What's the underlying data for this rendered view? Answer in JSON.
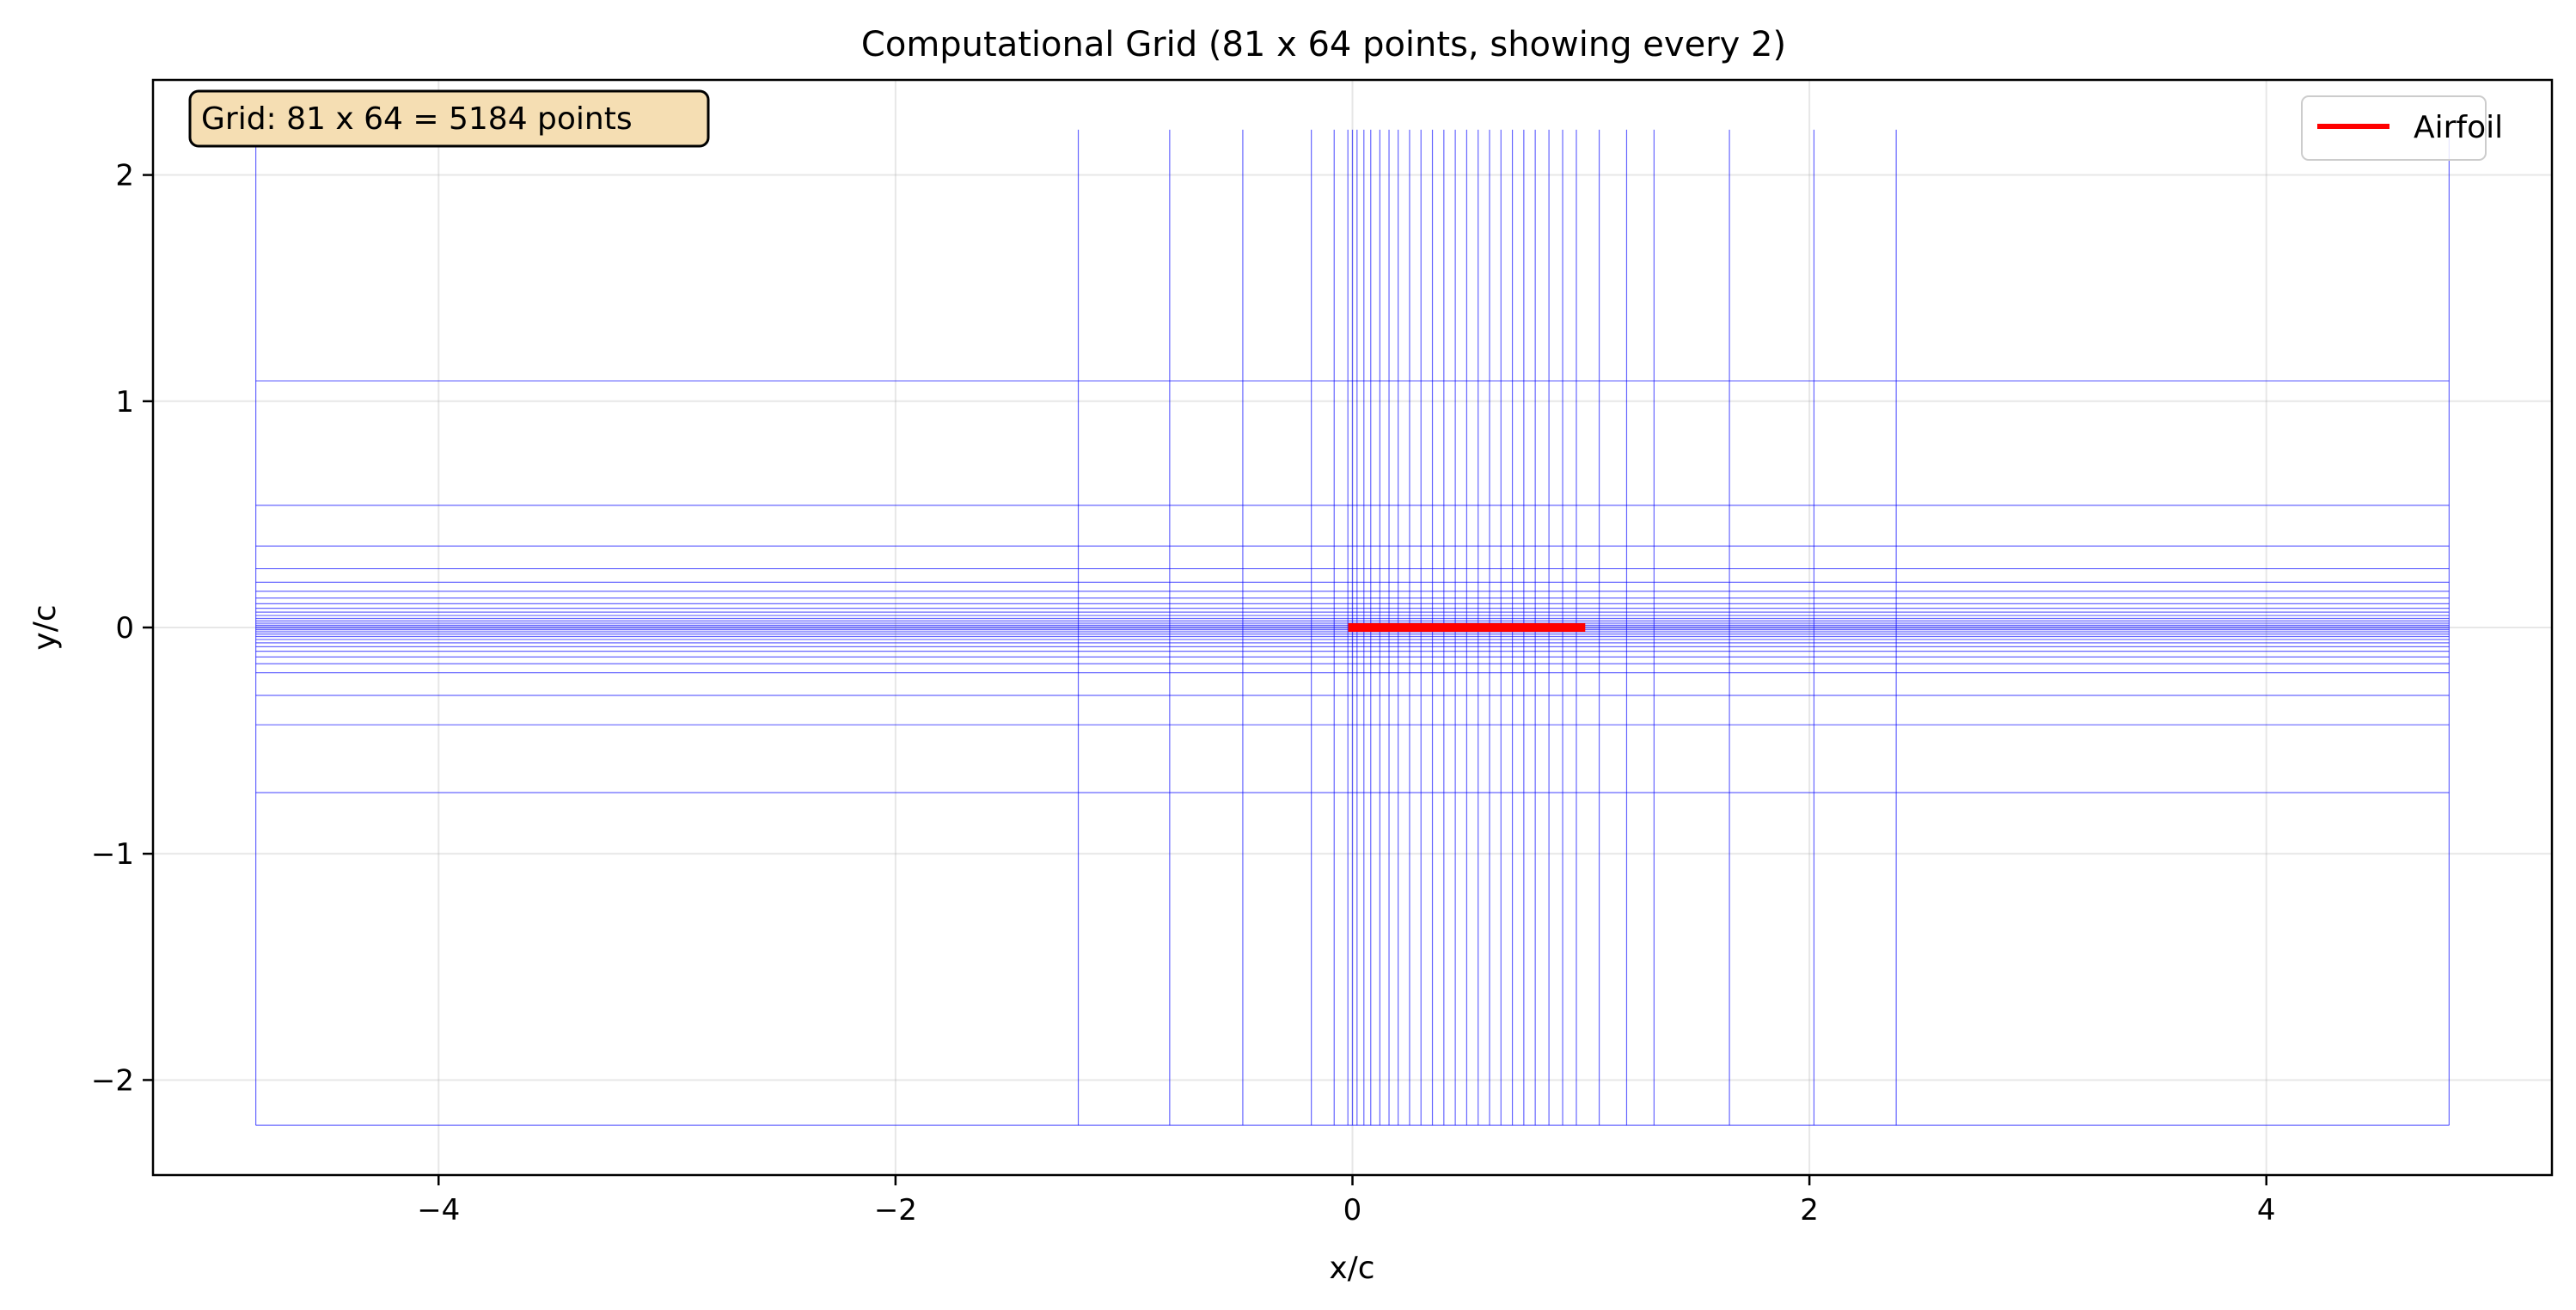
{
  "chart_data": {
    "type": "line",
    "title": "Computational Grid (81 x 64 points, showing every 2)",
    "xlabel": "x/c",
    "ylabel": "y/c",
    "xlim": [
      -5.25,
      5.25
    ],
    "ylim": [
      -2.42,
      2.42
    ],
    "xticks": [
      -4,
      -2,
      0,
      2,
      4
    ],
    "yticks": [
      -2,
      -1,
      0,
      1,
      2
    ],
    "xtick_labels": [
      "−4",
      "−2",
      "0",
      "2",
      "4"
    ],
    "ytick_labels": [
      "−2",
      "−1",
      "0",
      "1",
      "2"
    ],
    "grid": true,
    "legend": {
      "placement": "top-right",
      "entries": [
        {
          "label": "Airfoil",
          "color": "#ff0000"
        }
      ]
    },
    "annotation": {
      "text": "Grid: 81 x 64 = 5184 points",
      "placement": "top-left"
    },
    "grid_lines_color": "#0000ff",
    "airfoil": {
      "name": "Airfoil",
      "color": "#ff0000",
      "x": [
        0,
        1
      ],
      "y": [
        0,
        0
      ]
    },
    "mesh": {
      "x_range": [
        -4.8,
        4.8
      ],
      "y_range": [
        -2.2,
        2.2
      ],
      "vertical_lines_x": [
        -4.8,
        -1.2,
        -0.8,
        -0.48,
        -0.18,
        -0.08,
        -0.02,
        0.0,
        0.02,
        0.05,
        0.08,
        0.12,
        0.16,
        0.2,
        0.25,
        0.3,
        0.35,
        0.4,
        0.45,
        0.5,
        0.55,
        0.6,
        0.65,
        0.7,
        0.75,
        0.8,
        0.86,
        0.92,
        0.98,
        1.08,
        1.2,
        1.32,
        1.65,
        2.02,
        2.38,
        4.8
      ],
      "horizontal_lines_y": [
        1.09,
        0.54,
        0.36,
        0.26,
        0.2,
        0.16,
        0.13,
        0.105,
        0.085,
        0.068,
        0.053,
        0.04,
        0.029,
        0.019,
        0.01,
        0.003,
        -0.003,
        -0.01,
        -0.019,
        -0.029,
        -0.04,
        -0.053,
        -0.068,
        -0.085,
        -0.105,
        -0.13,
        -0.16,
        -0.2,
        -0.3,
        -0.43,
        -0.73,
        -2.2
      ]
    }
  }
}
